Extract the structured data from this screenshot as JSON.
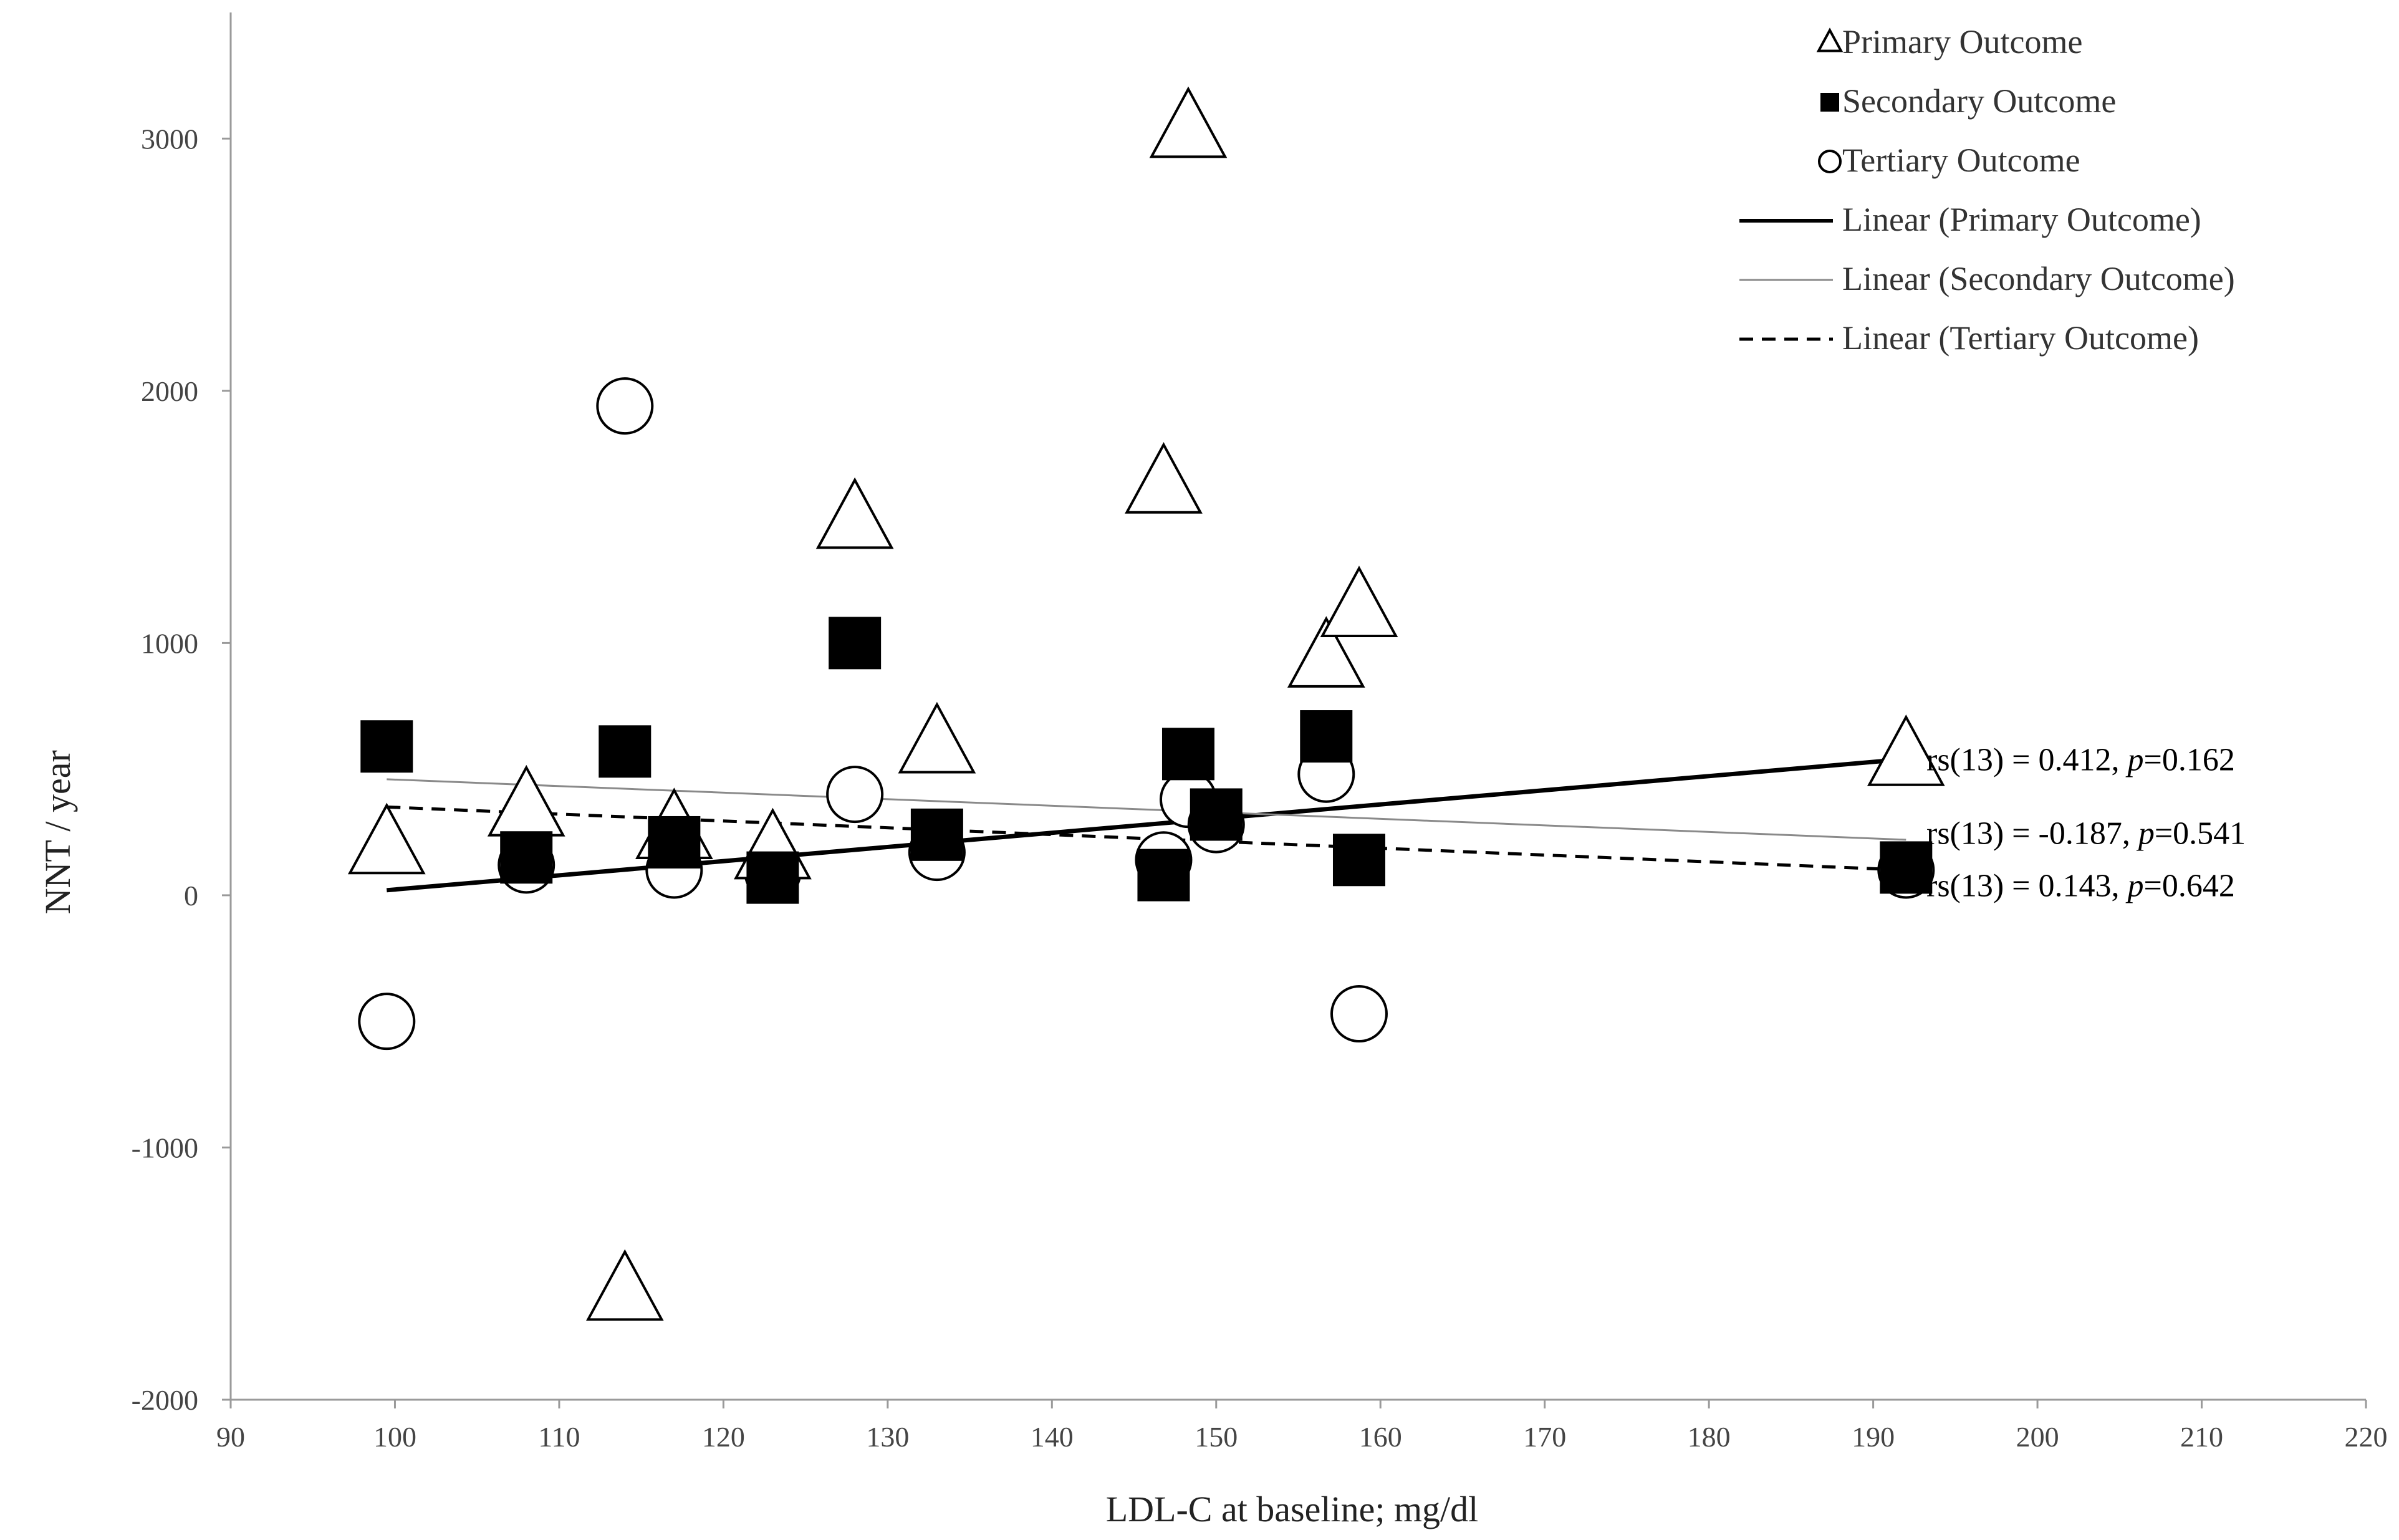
{
  "chart_data": {
    "type": "scatter",
    "title": "",
    "xlabel": "LDL-C at baseline; mg/dl",
    "ylabel": "NNT / year",
    "xlim": [
      90,
      220
    ],
    "ylim": [
      -2000,
      3500
    ],
    "xticks": [
      90,
      100,
      110,
      120,
      130,
      140,
      150,
      160,
      170,
      180,
      190,
      200,
      210,
      220
    ],
    "yticks": [
      -2000,
      -1000,
      0,
      1000,
      2000,
      3000
    ],
    "grid": false,
    "legend_position": "top-right",
    "series": [
      {
        "name": "Primary Outcome",
        "marker": "triangle",
        "points": [
          {
            "x": 99.5,
            "y": 190
          },
          {
            "x": 108,
            "y": 340
          },
          {
            "x": 114,
            "y": -1580
          },
          {
            "x": 117,
            "y": 250
          },
          {
            "x": 123,
            "y": 170
          },
          {
            "x": 128,
            "y": 1480
          },
          {
            "x": 133,
            "y": 590
          },
          {
            "x": 146.8,
            "y": 1620
          },
          {
            "x": 148.3,
            "y": 3030
          },
          {
            "x": 156.7,
            "y": 930
          },
          {
            "x": 158.7,
            "y": 1130
          },
          {
            "x": 192,
            "y": 540
          }
        ]
      },
      {
        "name": "Secondary Outcome",
        "marker": "square",
        "points": [
          {
            "x": 99.5,
            "y": 590
          },
          {
            "x": 108,
            "y": 150
          },
          {
            "x": 114,
            "y": 570
          },
          {
            "x": 117,
            "y": 210
          },
          {
            "x": 123,
            "y": 70
          },
          {
            "x": 128,
            "y": 1000
          },
          {
            "x": 133,
            "y": 240
          },
          {
            "x": 146.8,
            "y": 80
          },
          {
            "x": 148.3,
            "y": 560
          },
          {
            "x": 150,
            "y": 320
          },
          {
            "x": 156.7,
            "y": 630
          },
          {
            "x": 158.7,
            "y": 140
          },
          {
            "x": 192,
            "y": 110
          }
        ]
      },
      {
        "name": "Tertiary Outcome",
        "marker": "circle",
        "points": [
          {
            "x": 99.5,
            "y": -500
          },
          {
            "x": 108,
            "y": 120
          },
          {
            "x": 114,
            "y": 1940
          },
          {
            "x": 117,
            "y": 100
          },
          {
            "x": 123,
            "y": 90
          },
          {
            "x": 128,
            "y": 400
          },
          {
            "x": 133,
            "y": 170
          },
          {
            "x": 146.8,
            "y": 140
          },
          {
            "x": 148.3,
            "y": 380
          },
          {
            "x": 150,
            "y": 280
          },
          {
            "x": 156.7,
            "y": 480
          },
          {
            "x": 158.7,
            "y": -470
          },
          {
            "x": 192,
            "y": 100
          }
        ]
      }
    ],
    "trendlines": [
      {
        "name": "Linear (Primary Outcome)",
        "style": "solid-bold",
        "x": [
          99.5,
          192
        ],
        "y": [
          20,
          540
        ]
      },
      {
        "name": "Linear (Secondary Outcome)",
        "style": "solid-thin",
        "x": [
          99.5,
          192
        ],
        "y": [
          460,
          220
        ]
      },
      {
        "name": "Linear (Tertiary Outcome)",
        "style": "dashed",
        "x": [
          99.5,
          192
        ],
        "y": [
          350,
          100
        ]
      }
    ],
    "legend": [
      "Primary Outcome",
      "Secondary Outcome",
      "Tertiary Outcome",
      "Linear (Primary Outcome)",
      "Linear (Secondary Outcome)",
      "Linear (Tertiary Outcome)"
    ],
    "annotations": [
      {
        "series": "Primary Outcome",
        "prefix": "rs(13) = 0.412, ",
        "p_label": "p",
        "p_value": "=0.162"
      },
      {
        "series": "Secondary Outcome",
        "prefix": "rs(13) = -0.187, ",
        "p_label": "p",
        "p_value": "=0.541"
      },
      {
        "series": "Tertiary Outcome",
        "prefix": "rs(13) = 0.143, ",
        "p_label": "p",
        "p_value": "=0.642"
      }
    ],
    "colors": {
      "marker_stroke": "#000000",
      "marker_fill_open": "#ffffff",
      "axis": "#9a9a9a",
      "secondary_line": "#8a8a8a"
    }
  }
}
